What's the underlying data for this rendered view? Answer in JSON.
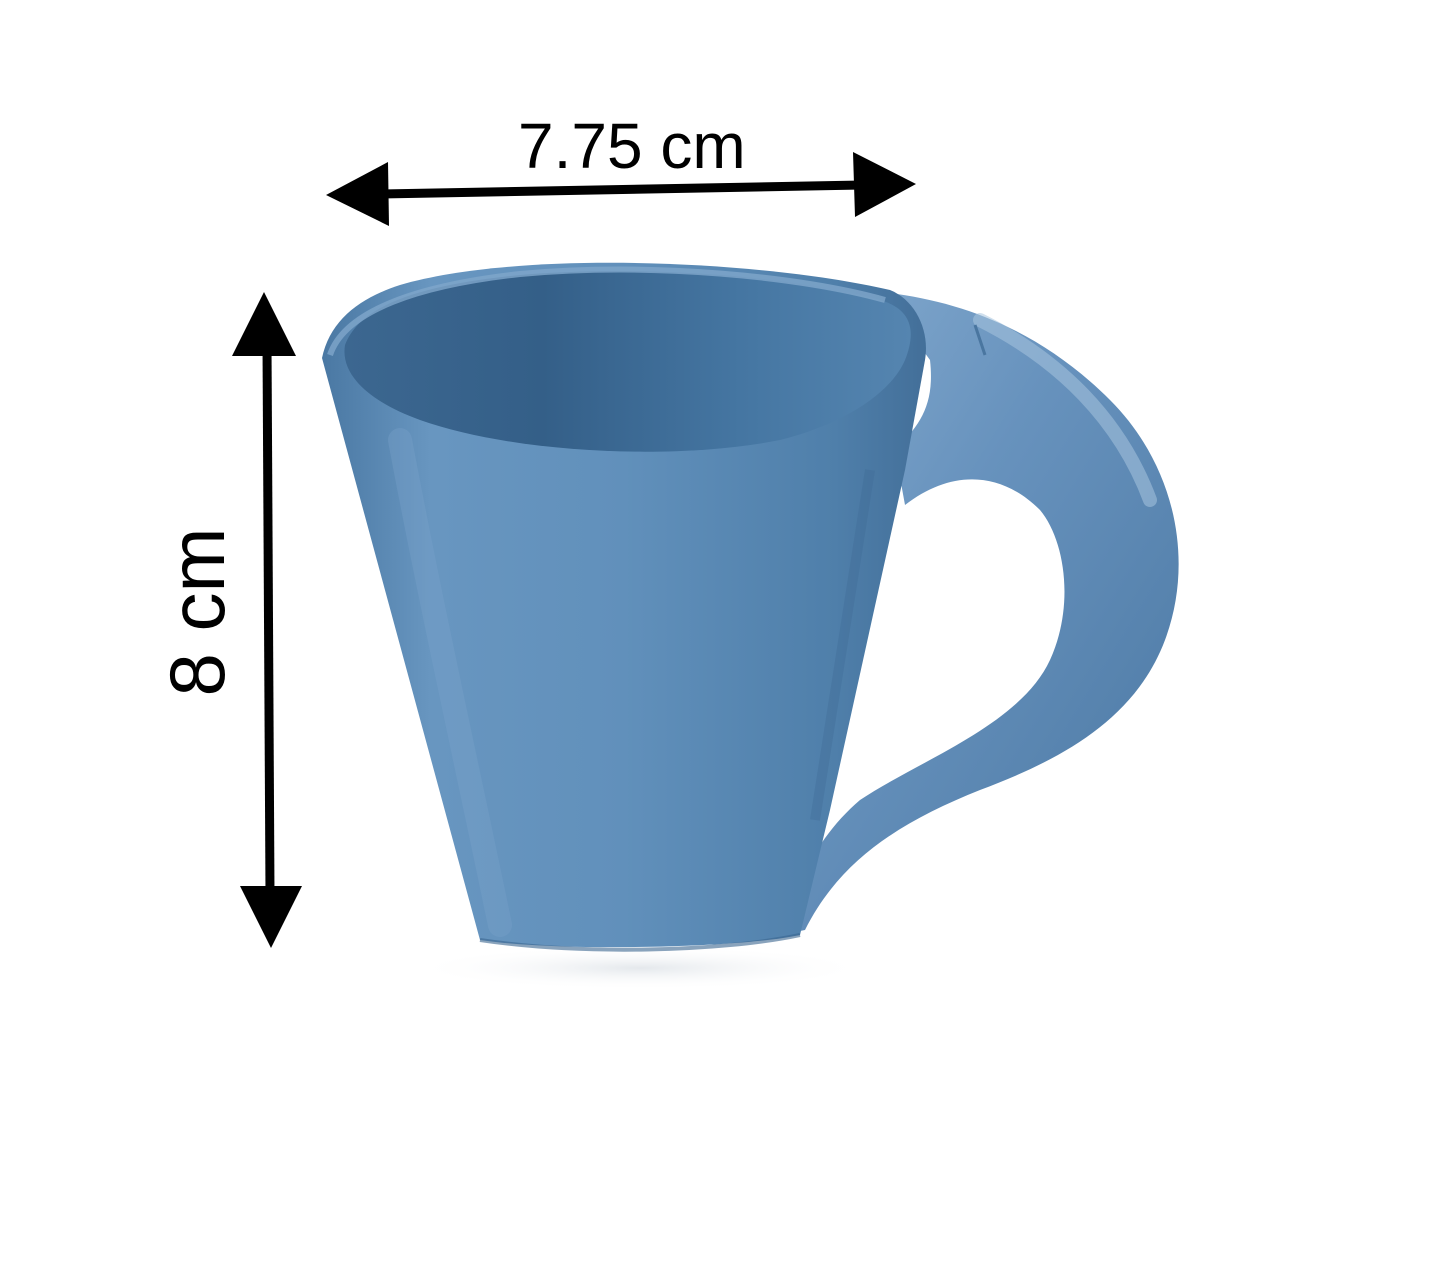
{
  "product": {
    "name": "mug-illustration",
    "body_color": "#5b8bb5",
    "shadow_color": "#3f6d97",
    "highlight_color": "#8fb3d3"
  },
  "dimensions": {
    "width_label": "7.75 cm",
    "height_label": "8 cm",
    "arrow_color": "#000000"
  }
}
